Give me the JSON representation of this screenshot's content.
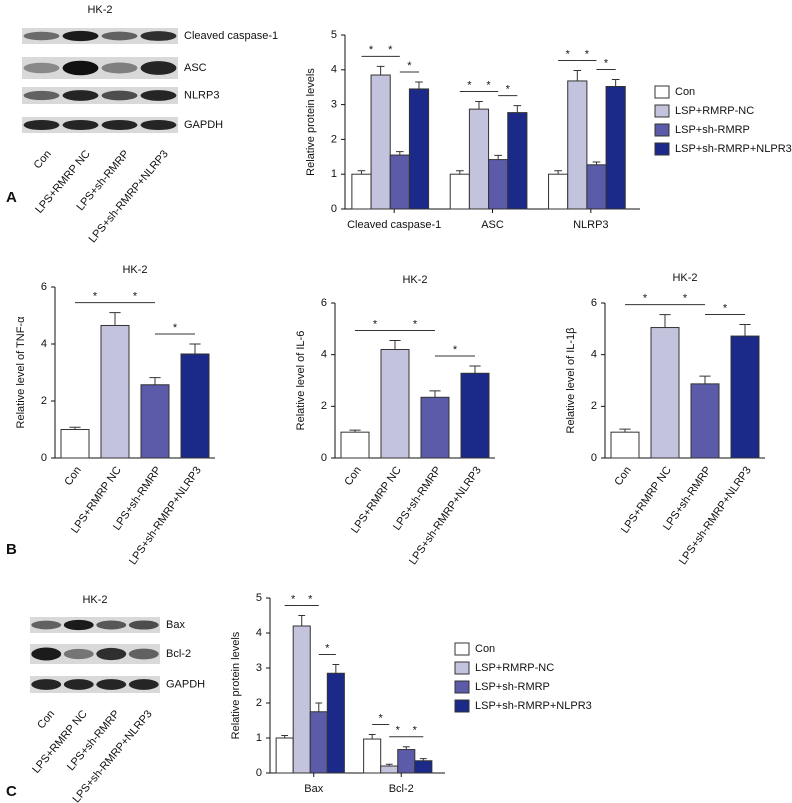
{
  "panel_labels": [
    "A",
    "B",
    "C"
  ],
  "blots": [
    {
      "title": "HK-2",
      "rows": [
        "Cleaved caspase-1",
        "ASC",
        "NLRP3",
        "GAPDH"
      ],
      "lanes": [
        "Con",
        "LPS+RMRP NC",
        "LPS+sh-RMRP",
        "LPS+sh-RMRP+NLRP3"
      ]
    },
    {
      "title": "HK-2",
      "rows": [
        "Bax",
        "Bcl-2",
        "GAPDH"
      ],
      "lanes": [
        "Con",
        "LPS+RMRP NC",
        "LPS+sh-RMRP",
        "LPS+sh-RMRP+NLRP3"
      ]
    }
  ],
  "chart_data": [
    {
      "type": "grouped_bar",
      "ylabel": "Relative protein levels",
      "categories": [
        "Cleaved caspase-1",
        "ASC",
        "NLRP3"
      ],
      "series": [
        {
          "name": "Con",
          "color": "#ffffff",
          "values": [
            1,
            1,
            1
          ],
          "errors": [
            0.1,
            0.1,
            0.1
          ]
        },
        {
          "name": "LSP+RMRP-NC",
          "color": "#c3c3dd",
          "values": [
            3.85,
            2.87,
            3.68
          ],
          "errors": [
            0.25,
            0.22,
            0.3
          ]
        },
        {
          "name": "LSP+sh-RMRP",
          "color": "#5b5ba9",
          "values": [
            1.55,
            1.42,
            1.27
          ],
          "errors": [
            0.1,
            0.12,
            0.08
          ]
        },
        {
          "name": "LSP+sh-RMRP+NLPR3",
          "color": "#1b2a88",
          "values": [
            3.45,
            2.77,
            3.52
          ],
          "errors": [
            0.2,
            0.2,
            0.2
          ]
        }
      ],
      "ylim": [
        0,
        5
      ],
      "yticks": [
        0,
        1,
        2,
        3,
        4,
        5
      ],
      "significance": {
        "pairs": [
          [
            0,
            1
          ],
          [
            1,
            2
          ],
          [
            2,
            3
          ]
        ],
        "labels": [
          [
            "*",
            "*",
            "*"
          ],
          [
            "*",
            "*",
            "*"
          ],
          [
            "*",
            "*",
            "*"
          ]
        ]
      },
      "legend": "right"
    },
    {
      "type": "bar",
      "title": "HK-2",
      "ylabel": "Relative level  of TNF-α",
      "categories": [
        "Con",
        "LPS+RMRP NC",
        "LPS+sh-RMRP",
        "LPS+sh-RMRP+NLRP3"
      ],
      "values": [
        1,
        4.65,
        2.57,
        3.65
      ],
      "errors": [
        0.08,
        0.45,
        0.25,
        0.35
      ],
      "colors": [
        "#ffffff",
        "#c3c3dd",
        "#5b5ba9",
        "#1b2a88"
      ],
      "ylim": [
        0,
        6
      ],
      "yticks": [
        0,
        2,
        4,
        6
      ],
      "significance": {
        "pairs": [
          [
            0,
            1
          ],
          [
            1,
            2
          ],
          [
            2,
            3
          ]
        ],
        "labels": [
          "*",
          "*",
          "*"
        ]
      }
    },
    {
      "type": "bar",
      "title": "HK-2",
      "ylabel": "Relative level  of IL-6",
      "categories": [
        "Con",
        "LPS+RMRP NC",
        "LPS+sh-RMRP",
        "LPS+sh-RMRP+NLRP3"
      ],
      "values": [
        1,
        4.2,
        2.35,
        3.28
      ],
      "errors": [
        0.08,
        0.35,
        0.25,
        0.28
      ],
      "colors": [
        "#ffffff",
        "#c3c3dd",
        "#5b5ba9",
        "#1b2a88"
      ],
      "ylim": [
        0,
        6
      ],
      "yticks": [
        0,
        2,
        4,
        6
      ],
      "significance": {
        "pairs": [
          [
            0,
            1
          ],
          [
            1,
            2
          ],
          [
            2,
            3
          ]
        ],
        "labels": [
          "*",
          "*",
          "*"
        ]
      }
    },
    {
      "type": "bar",
      "title": "HK-2",
      "ylabel": "Relative level  of IL-1β",
      "categories": [
        "Con",
        "LPS+RMRP NC",
        "LPS+sh-RMRP",
        "LPS+sh-RMRP+NLRP3"
      ],
      "values": [
        1,
        5.05,
        2.87,
        4.72
      ],
      "errors": [
        0.12,
        0.5,
        0.3,
        0.45
      ],
      "colors": [
        "#ffffff",
        "#c3c3dd",
        "#5b5ba9",
        "#1b2a88"
      ],
      "ylim": [
        0,
        6
      ],
      "yticks": [
        0,
        2,
        4,
        6
      ],
      "significance": {
        "pairs": [
          [
            0,
            1
          ],
          [
            1,
            2
          ],
          [
            2,
            3
          ]
        ],
        "labels": [
          "*",
          "*",
          "*"
        ]
      }
    },
    {
      "type": "grouped_bar",
      "ylabel": "Relative protein levels",
      "categories": [
        "Bax",
        "Bcl-2"
      ],
      "series": [
        {
          "name": "Con",
          "color": "#ffffff",
          "values": [
            1,
            0.97
          ],
          "errors": [
            0.07,
            0.13
          ]
        },
        {
          "name": "LSP+RMRP-NC",
          "color": "#c3c3dd",
          "values": [
            4.2,
            0.2
          ],
          "errors": [
            0.3,
            0.05
          ]
        },
        {
          "name": "LSP+sh-RMRP",
          "color": "#5b5ba9",
          "values": [
            1.75,
            0.67
          ],
          "errors": [
            0.25,
            0.08
          ]
        },
        {
          "name": "LSP+sh-RMRP+NLPR3",
          "color": "#1b2a88",
          "values": [
            2.85,
            0.35
          ],
          "errors": [
            0.25,
            0.06
          ]
        }
      ],
      "ylim": [
        0,
        5
      ],
      "yticks": [
        0,
        1,
        2,
        3,
        4,
        5
      ],
      "significance": {
        "pairs": [
          [
            0,
            1
          ],
          [
            1,
            2
          ],
          [
            2,
            3
          ]
        ],
        "labels": [
          [
            "*",
            "*",
            "*"
          ],
          [
            "*",
            "*",
            "*"
          ]
        ]
      },
      "legend": "right"
    }
  ]
}
